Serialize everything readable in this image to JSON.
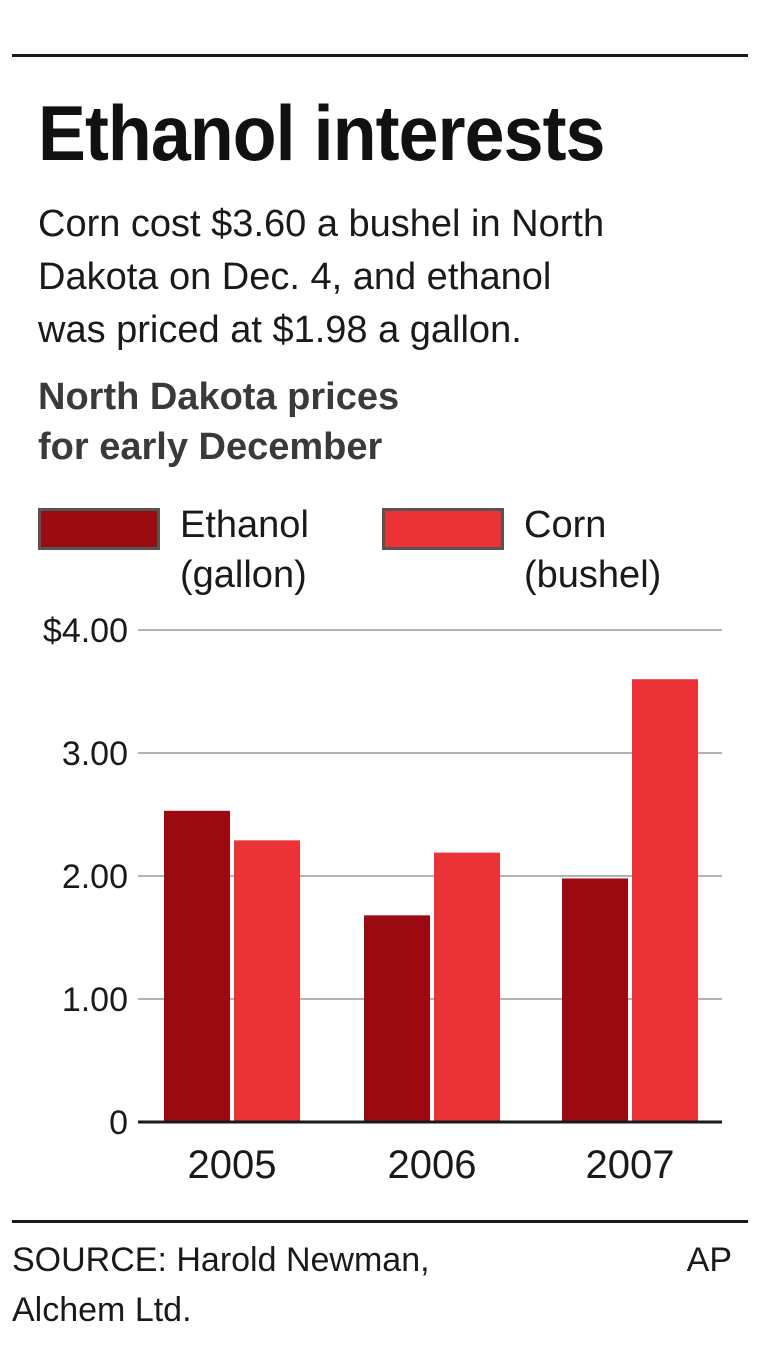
{
  "title": "Ethanol interests",
  "description_lines": [
    "Corn cost $3.60 a bushel in North",
    "Dakota on Dec. 4, and ethanol",
    "was priced at $1.98 a gallon."
  ],
  "subtitle_lines": [
    "North Dakota prices",
    "for early December"
  ],
  "legend": [
    {
      "line1": "Ethanol",
      "line2": "(gallon)",
      "color": "#9a0a10"
    },
    {
      "line1": "Corn",
      "line2": "(bushel)",
      "color": "#ea3237"
    }
  ],
  "source_lines": [
    "SOURCE: Harold Newman,",
    "Alchem Ltd."
  ],
  "credit": "AP",
  "chart_data": {
    "type": "bar",
    "title": "North Dakota prices for early December",
    "categories": [
      "2005",
      "2006",
      "2007"
    ],
    "series": [
      {
        "name": "Ethanol (gallon)",
        "color": "#9a0a10",
        "values": [
          2.53,
          1.68,
          1.98
        ]
      },
      {
        "name": "Corn (bushel)",
        "color": "#ea3237",
        "values": [
          2.29,
          2.19,
          3.6
        ]
      }
    ],
    "ylim": [
      0,
      4
    ],
    "yticks": [
      0,
      1,
      2,
      3,
      4
    ],
    "ytick_labels": [
      "0",
      "1.00",
      "2.00",
      "3.00",
      "$4.00"
    ],
    "grid": true,
    "legend_position": "top"
  }
}
